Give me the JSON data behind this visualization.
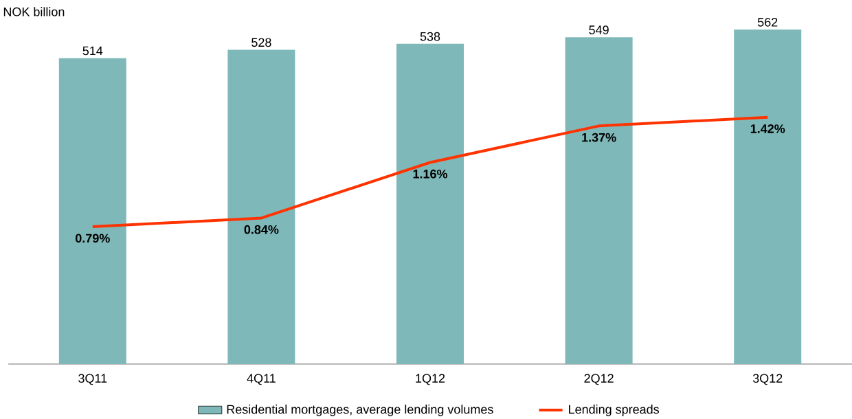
{
  "chart_data": {
    "type": "bar",
    "ylabel": "NOK billion",
    "categories": [
      "3Q11",
      "4Q11",
      "1Q12",
      "2Q12",
      "3Q12"
    ],
    "legend": "bottom",
    "series": [
      {
        "name": "Residential mortgages, average lending volumes",
        "color": "#7fb8b8",
        "values": [
          514,
          528,
          538,
          549,
          562
        ],
        "value_labels": [
          "514",
          "528",
          "538",
          "549",
          "562"
        ]
      },
      {
        "name": "Lending spreads",
        "type": "line",
        "axis": "y2",
        "color": "#ff3300",
        "marker": "none",
        "values": [
          0.79,
          0.84,
          1.16,
          1.37,
          1.42
        ],
        "value_labels": [
          "0.79%",
          "0.84%",
          "1.16%",
          "1.37%",
          "1.42%"
        ]
      }
    ]
  }
}
